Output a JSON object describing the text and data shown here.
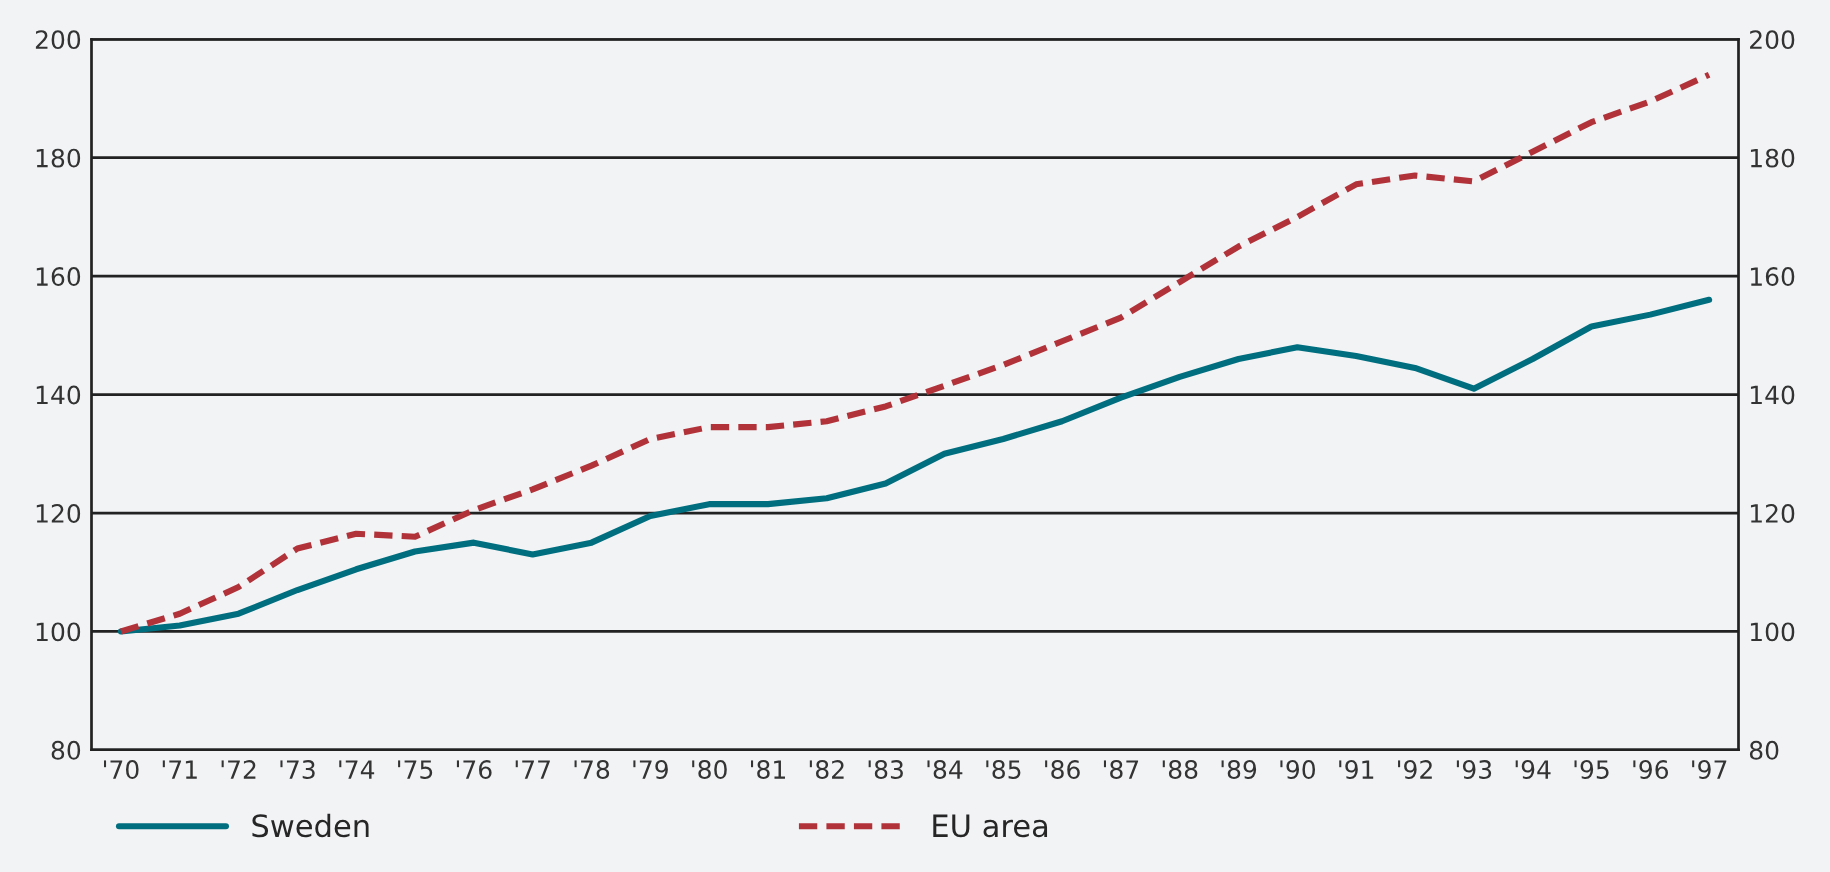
{
  "chart_data": {
    "type": "line",
    "categories": [
      "'70",
      "'71",
      "'72",
      "'73",
      "'74",
      "'75",
      "'76",
      "'77",
      "'78",
      "'79",
      "'80",
      "'81",
      "'82",
      "'83",
      "'84",
      "'85",
      "'86",
      "'87",
      "'88",
      "'89",
      "'90",
      "'91",
      "'92",
      "'93",
      "'94",
      "'95",
      "'96",
      "'97"
    ],
    "series": [
      {
        "name": "Sweden",
        "color": "#006e7f",
        "line_style": "solid",
        "values": [
          100,
          101,
          103,
          107,
          110.5,
          113.5,
          115,
          113,
          115,
          119.5,
          121.5,
          121.5,
          122.5,
          125,
          130,
          132.5,
          135.5,
          139.5,
          143,
          146,
          148,
          146.5,
          144.5,
          141,
          146,
          151.5,
          153.5,
          156
        ]
      },
      {
        "name": "EU area",
        "color": "#b2323a",
        "line_style": "dashed",
        "values": [
          100,
          103,
          107.5,
          114,
          116.5,
          116,
          120.5,
          124,
          128,
          132.5,
          134.5,
          134.5,
          135.5,
          138,
          141.5,
          145,
          149,
          153,
          159,
          165,
          170,
          175.5,
          177,
          176,
          181,
          186,
          189.5,
          194
        ]
      }
    ],
    "ylim": [
      80,
      200
    ],
    "yticks": [
      80,
      100,
      120,
      140,
      160,
      180,
      200
    ],
    "y2lim": [
      80,
      200
    ],
    "y2ticks": [
      80,
      100,
      120,
      140,
      160,
      180,
      200
    ],
    "grid": true,
    "legend": "bottom left"
  }
}
